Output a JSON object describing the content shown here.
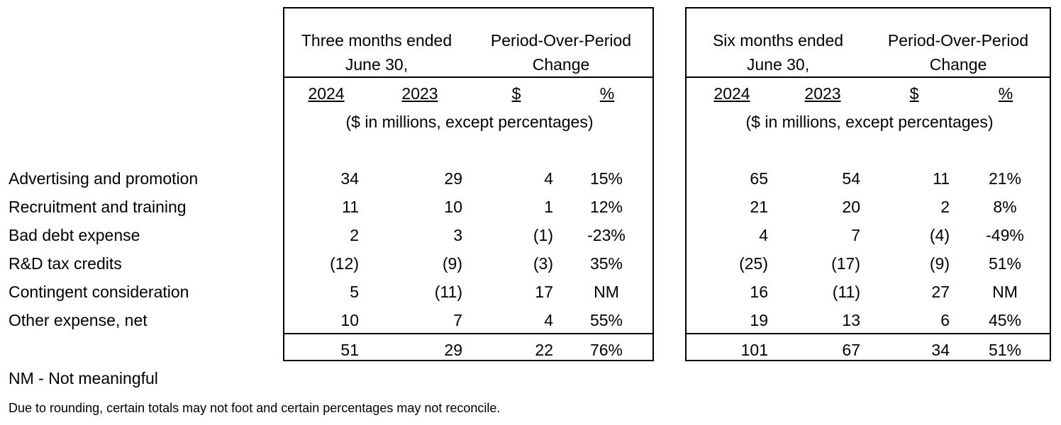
{
  "headers": {
    "three_months": [
      "Three months ended",
      "June 30,"
    ],
    "six_months": [
      "Six months ended",
      "June 30,"
    ],
    "change": [
      "Period-Over-Period",
      "Change"
    ],
    "col_2024": "2024",
    "col_2023": "2023",
    "col_dollar": "$",
    "col_pct": "%",
    "units": "($ in millions, except percentages)"
  },
  "rows": [
    {
      "label": "Advertising and promotion",
      "q": [
        "34",
        "29",
        "4",
        "15%"
      ],
      "h": [
        "65",
        "54",
        "11",
        "21%"
      ]
    },
    {
      "label": "Recruitment and training",
      "q": [
        "11",
        "10",
        "1",
        "12%"
      ],
      "h": [
        "21",
        "20",
        "2",
        "8%"
      ]
    },
    {
      "label": "Bad debt expense",
      "q": [
        "2",
        "3",
        "(1)",
        "-23%"
      ],
      "h": [
        "4",
        "7",
        "(4)",
        "-49%"
      ]
    },
    {
      "label": "R&D tax credits",
      "q": [
        "(12)",
        "(9)",
        "(3)",
        "35%"
      ],
      "h": [
        "(25)",
        "(17)",
        "(9)",
        "51%"
      ]
    },
    {
      "label": "Contingent consideration",
      "q": [
        "5",
        "(11)",
        "17",
        "NM"
      ],
      "h": [
        "16",
        "(11)",
        "27",
        "NM"
      ]
    },
    {
      "label": "Other expense, net",
      "q": [
        "10",
        "7",
        "4",
        "55%"
      ],
      "h": [
        "19",
        "13",
        "6",
        "45%"
      ]
    }
  ],
  "totals": {
    "q": [
      "51",
      "29",
      "22",
      "76%"
    ],
    "h": [
      "101",
      "67",
      "34",
      "51%"
    ]
  },
  "footnotes": {
    "nm": "NM - Not meaningful",
    "rounding": "Due to rounding, certain totals may not foot and certain percentages may not reconcile."
  }
}
